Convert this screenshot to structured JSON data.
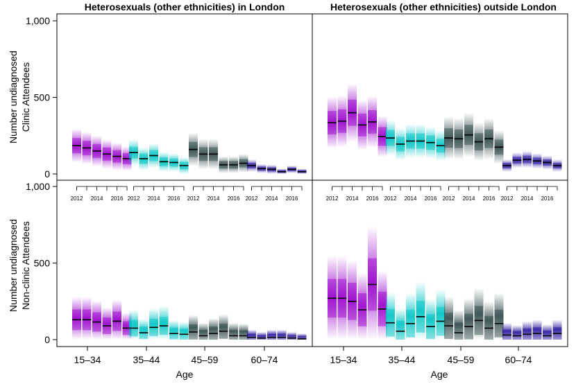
{
  "chart_data": {
    "type": "heatmap",
    "panel_titles": [
      "Heterosexuals (other ethnicities) in London",
      "Heterosexuals (other ethnicities) outside London"
    ],
    "ylabels": [
      [
        "Number undiagnosed",
        "Clinic Attendees"
      ],
      [
        "Number undiagnosed",
        "Non-clinic Attendees"
      ]
    ],
    "xlabel": "Age",
    "age_groups": [
      "15–34",
      "35–44",
      "45–59",
      "60–74"
    ],
    "years": [
      2012,
      2013,
      2014,
      2015,
      2016,
      2017
    ],
    "year_tick_labels": [
      "2012",
      "2014",
      "2016"
    ],
    "ylim": [
      0,
      1000
    ],
    "yticks": [
      0,
      500,
      1000
    ],
    "ytick_labels": [
      "0",
      "500",
      "1,000"
    ],
    "group_colors": [
      "#9900cc",
      "#00c4c4",
      "#304a4a",
      "#2a18a0"
    ],
    "panels": [
      {
        "row": 0,
        "col": 0,
        "medians": [
          [
            185,
            170,
            150,
            130,
            115,
            100
          ],
          [
            140,
            100,
            120,
            80,
            75,
            55
          ],
          [
            160,
            130,
            130,
            60,
            60,
            70
          ],
          [
            55,
            35,
            30,
            15,
            30,
            15
          ]
        ],
        "spread": [
          [
            110,
            105,
            100,
            95,
            90,
            80
          ],
          [
            85,
            75,
            80,
            65,
            60,
            55
          ],
          [
            110,
            100,
            100,
            55,
            55,
            60
          ],
          [
            40,
            30,
            30,
            20,
            25,
            20
          ]
        ]
      },
      {
        "row": 0,
        "col": 1,
        "medians": [
          [
            335,
            345,
            400,
            320,
            340,
            245
          ],
          [
            235,
            195,
            215,
            215,
            205,
            185
          ],
          [
            235,
            230,
            255,
            210,
            230,
            175
          ],
          [
            55,
            90,
            95,
            85,
            75,
            55
          ]
        ],
        "spread": [
          [
            170,
            170,
            190,
            165,
            170,
            135
          ],
          [
            115,
            105,
            110,
            110,
            105,
            100
          ],
          [
            140,
            135,
            145,
            125,
            135,
            110
          ],
          [
            40,
            50,
            55,
            50,
            45,
            40
          ]
        ]
      },
      {
        "row": 1,
        "col": 0,
        "medians": [
          [
            130,
            130,
            115,
            90,
            120,
            75
          ],
          [
            75,
            45,
            80,
            90,
            40,
            35
          ],
          [
            50,
            25,
            40,
            55,
            25,
            25
          ],
          [
            15,
            10,
            15,
            15,
            10,
            5
          ]
        ],
        "spread": [
          [
            150,
            150,
            140,
            120,
            140,
            100
          ],
          [
            120,
            90,
            125,
            130,
            85,
            80
          ],
          [
            110,
            85,
            100,
            110,
            85,
            80
          ],
          [
            50,
            40,
            50,
            50,
            40,
            35
          ]
        ]
      },
      {
        "row": 1,
        "col": 1,
        "medians": [
          [
            270,
            270,
            250,
            195,
            360,
            200
          ],
          [
            110,
            55,
            105,
            150,
            85,
            120
          ],
          [
            90,
            45,
            85,
            125,
            75,
            105
          ],
          [
            30,
            25,
            35,
            40,
            25,
            40
          ]
        ],
        "spread": [
          [
            280,
            280,
            270,
            240,
            380,
            250
          ],
          [
            200,
            150,
            200,
            230,
            180,
            210
          ],
          [
            190,
            150,
            185,
            210,
            175,
            200
          ],
          [
            80,
            70,
            85,
            90,
            75,
            90
          ]
        ]
      }
    ]
  }
}
